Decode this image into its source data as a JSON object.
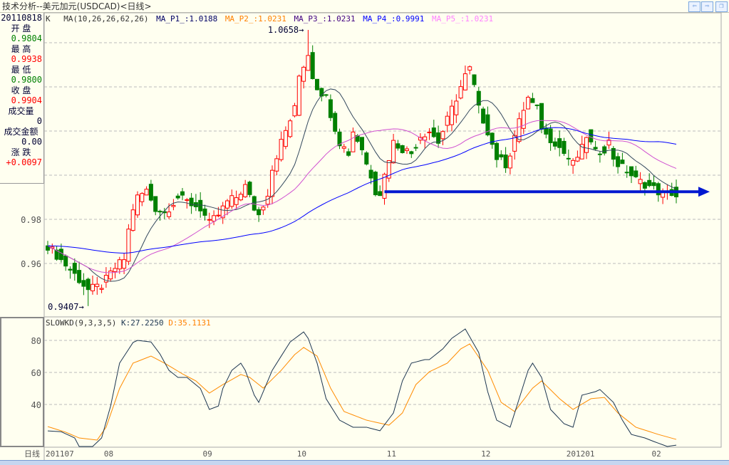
{
  "window": {
    "title": "技术分析--美元加元(USDCAD)<日线>",
    "nav_prev": "⇦",
    "nav_next": "⇨",
    "restore": "❐"
  },
  "info": {
    "date": "20110818",
    "open_label": "开  盘",
    "open": "0.9804",
    "high_label": "最  高",
    "high": "0.9938",
    "low_label": "最  低",
    "low": "0.9800",
    "close_label": "收  盘",
    "close": "0.9904",
    "volume_label": "成交量",
    "volume": "0",
    "amount_label": "成交金额",
    "amount": "0.00",
    "change_label": "涨  跌",
    "change": "+0.0097"
  },
  "legend": {
    "k": "K",
    "ma": "MA(10,26,26,62,26)",
    "p1": "MA_P1_:1.0188",
    "p2": "MA_P2_:1.0231",
    "p3": "MA_P3_:1.0231",
    "p4": "MA_P4_:0.9991",
    "p5": "MA_P5_:1.0231"
  },
  "kd_legend": {
    "name": "SLOWKD(9,3,3,5)",
    "k": "K:27.2250",
    "d": "D:35.1131"
  },
  "period_label": "日线",
  "colors": {
    "up": "#ff0000",
    "down": "#008000",
    "ma10": "#34495e",
    "ma26": "#d050d0",
    "ma62": "#0000ff",
    "k": "#1c3550",
    "d": "#ff8c00",
    "arrow": "#0018d0"
  },
  "chart_data": {
    "type": "candlestick",
    "bars": 141,
    "price_ticks": [
      0.98,
      0.96
    ],
    "price_grid": [
      1.06,
      1.04,
      1.02,
      1.0,
      0.98,
      0.96
    ],
    "annotations": [
      {
        "text": "1.0658",
        "bar": 58,
        "price": 1.0658
      },
      {
        "text": "0.9407",
        "bar": 9,
        "price": 0.9407
      }
    ],
    "close_waypoints": [
      [
        0,
        0.968
      ],
      [
        6,
        0.955
      ],
      [
        9,
        0.948
      ],
      [
        12,
        0.95
      ],
      [
        15,
        0.958
      ],
      [
        17,
        0.962
      ],
      [
        18,
        0.975
      ],
      [
        19,
        0.985
      ],
      [
        20,
        0.99
      ],
      [
        22,
        0.993
      ],
      [
        24,
        0.985
      ],
      [
        26,
        0.983
      ],
      [
        29,
        0.99
      ],
      [
        31,
        0.988
      ],
      [
        34,
        0.985
      ],
      [
        36,
        0.978
      ],
      [
        38,
        0.982
      ],
      [
        40,
        0.988
      ],
      [
        42,
        0.99
      ],
      [
        44,
        0.995
      ],
      [
        46,
        0.985
      ],
      [
        47,
        0.982
      ],
      [
        49,
        0.992
      ],
      [
        50,
        1.003
      ],
      [
        52,
        1.015
      ],
      [
        54,
        1.025
      ],
      [
        55,
        1.03
      ],
      [
        56,
        1.045
      ],
      [
        57,
        1.05
      ],
      [
        58,
        1.055
      ],
      [
        59,
        1.045
      ],
      [
        60,
        1.04
      ],
      [
        62,
        1.035
      ],
      [
        63,
        1.028
      ],
      [
        65,
        1.015
      ],
      [
        67,
        1.01
      ],
      [
        68,
        1.02
      ],
      [
        70,
        1.012
      ],
      [
        71,
        1.005
      ],
      [
        72,
        1.0
      ],
      [
        73,
        0.993
      ],
      [
        74,
        0.992
      ],
      [
        75,
        1.0
      ],
      [
        76,
        1.008
      ],
      [
        77,
        1.015
      ],
      [
        79,
        1.012
      ],
      [
        81,
        1.01
      ],
      [
        83,
        1.018
      ],
      [
        85,
        1.02
      ],
      [
        87,
        1.015
      ],
      [
        89,
        1.025
      ],
      [
        90,
        1.03
      ],
      [
        92,
        1.04
      ],
      [
        93,
        1.045
      ],
      [
        94,
        1.048
      ],
      [
        95,
        1.04
      ],
      [
        96,
        1.03
      ],
      [
        98,
        1.02
      ],
      [
        100,
        1.008
      ],
      [
        102,
        1.005
      ],
      [
        103,
        1.01
      ],
      [
        104,
        1.018
      ],
      [
        106,
        1.03
      ],
      [
        107,
        1.035
      ],
      [
        108,
        1.032
      ],
      [
        109,
        1.03
      ],
      [
        110,
        1.022
      ],
      [
        111,
        1.018
      ],
      [
        113,
        1.015
      ],
      [
        115,
        1.01
      ],
      [
        117,
        1.005
      ],
      [
        119,
        1.012
      ],
      [
        120,
        1.018
      ],
      [
        122,
        1.01
      ],
      [
        124,
        1.012
      ],
      [
        125,
        1.015
      ],
      [
        126,
        1.008
      ],
      [
        127,
        1.005
      ],
      [
        129,
        1.002
      ],
      [
        131,
        0.998
      ],
      [
        133,
        0.996
      ],
      [
        135,
        0.994
      ],
      [
        137,
        0.991
      ],
      [
        139,
        0.992
      ],
      [
        140,
        0.9904
      ]
    ],
    "ma_periods": [
      10,
      26,
      62
    ],
    "support_line": {
      "price": 0.9925,
      "from_bar": 75,
      "to": "right"
    },
    "kd": {
      "ticks": [
        80,
        60,
        40
      ],
      "k": [
        [
          0,
          23.5
        ],
        [
          3,
          23
        ],
        [
          6,
          19.1
        ],
        [
          7,
          13.8
        ],
        [
          10,
          13.8
        ],
        [
          12,
          19.1
        ],
        [
          14,
          39
        ],
        [
          16,
          65.8
        ],
        [
          19,
          78.7
        ],
        [
          20,
          80
        ],
        [
          23,
          79
        ],
        [
          25,
          71.5
        ],
        [
          27,
          61.3
        ],
        [
          29,
          56.9
        ],
        [
          31,
          56.9
        ],
        [
          34,
          50
        ],
        [
          36,
          36.9
        ],
        [
          38,
          39
        ],
        [
          39,
          50
        ],
        [
          41,
          61.3
        ],
        [
          43,
          65.8
        ],
        [
          44,
          61.3
        ],
        [
          46,
          45.8
        ],
        [
          47,
          41.3
        ],
        [
          50,
          61.3
        ],
        [
          52,
          70.2
        ],
        [
          54,
          79
        ],
        [
          57,
          85.3
        ],
        [
          58,
          81.3
        ],
        [
          60,
          65.8
        ],
        [
          62,
          43.6
        ],
        [
          65,
          30.2
        ],
        [
          68,
          25.8
        ],
        [
          71,
          25.8
        ],
        [
          74,
          23.6
        ],
        [
          77,
          34.7
        ],
        [
          79,
          54.7
        ],
        [
          81,
          65.8
        ],
        [
          84,
          68
        ],
        [
          85,
          68
        ],
        [
          88,
          74.7
        ],
        [
          90,
          81.3
        ],
        [
          93,
          87.1
        ],
        [
          96,
          72.4
        ],
        [
          98,
          48
        ],
        [
          100,
          30.2
        ],
        [
          103,
          25.8
        ],
        [
          104,
          34.7
        ],
        [
          107,
          61.3
        ],
        [
          108,
          65.8
        ],
        [
          110,
          56.9
        ],
        [
          112,
          36.9
        ],
        [
          115,
          28
        ],
        [
          117,
          25.8
        ],
        [
          119,
          45.8
        ],
        [
          122,
          48
        ],
        [
          123,
          49.3
        ],
        [
          126,
          41.3
        ],
        [
          128,
          30.2
        ],
        [
          130,
          21.3
        ],
        [
          133,
          19.1
        ],
        [
          135,
          16.9
        ],
        [
          138,
          13.8
        ],
        [
          140,
          14.6
        ]
      ],
      "d": [
        [
          0,
          26.2
        ],
        [
          4,
          22.7
        ],
        [
          7,
          19.1
        ],
        [
          11,
          17.8
        ],
        [
          13,
          25.8
        ],
        [
          16,
          50
        ],
        [
          19,
          65.8
        ],
        [
          23,
          70.2
        ],
        [
          26,
          65.8
        ],
        [
          30,
          59.1
        ],
        [
          33,
          54.7
        ],
        [
          36,
          47.1
        ],
        [
          39,
          52.4
        ],
        [
          43,
          58.7
        ],
        [
          45,
          56.9
        ],
        [
          48,
          50.2
        ],
        [
          52,
          61.3
        ],
        [
          55,
          71.1
        ],
        [
          57,
          75.6
        ],
        [
          60,
          70.2
        ],
        [
          63,
          50.2
        ],
        [
          66,
          35.6
        ],
        [
          71,
          30.2
        ],
        [
          76,
          27.1
        ],
        [
          79,
          34.7
        ],
        [
          82,
          52.4
        ],
        [
          85,
          60.4
        ],
        [
          89,
          65.8
        ],
        [
          92,
          74.7
        ],
        [
          94,
          77.8
        ],
        [
          98,
          61.3
        ],
        [
          101,
          41.3
        ],
        [
          104,
          35.6
        ],
        [
          108,
          50.2
        ],
        [
          110,
          54.7
        ],
        [
          114,
          43.6
        ],
        [
          117,
          36.9
        ],
        [
          121,
          43.6
        ],
        [
          124,
          44.4
        ],
        [
          127,
          34.7
        ],
        [
          131,
          25.8
        ],
        [
          136,
          21.3
        ],
        [
          140,
          18.2
        ]
      ]
    },
    "x_labels": [
      {
        "text": "201107",
        "bar": 0
      },
      {
        "text": "08",
        "bar": 13
      },
      {
        "text": "09",
        "bar": 35
      },
      {
        "text": "10",
        "bar": 56
      },
      {
        "text": "11",
        "bar": 76
      },
      {
        "text": "12",
        "bar": 97
      },
      {
        "text": "201201",
        "bar": 116
      },
      {
        "text": "02",
        "bar": 135
      }
    ]
  }
}
